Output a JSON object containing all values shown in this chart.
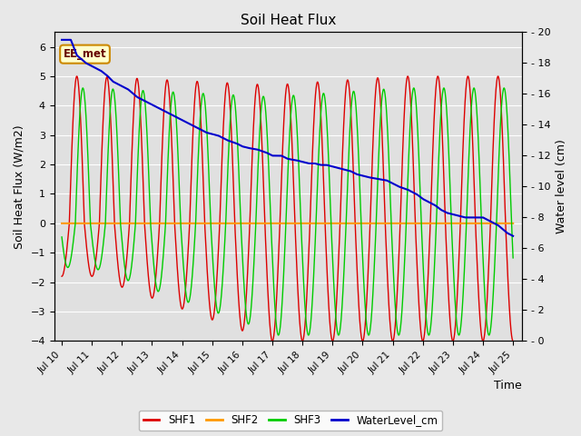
{
  "title": "Soil Heat Flux",
  "xlabel": "Time",
  "ylabel_left": "Soil Heat Flux (W/m2)",
  "ylabel_right": "Water level (cm)",
  "xlim_days": [
    9.75,
    25.3
  ],
  "ylim_left": [
    -4.0,
    6.5
  ],
  "ylim_right": [
    0,
    20
  ],
  "background_color": "#e8e8e8",
  "plot_bg_color": "#e0e0e0",
  "grid_color": "#ffffff",
  "shf1_color": "#dd0000",
  "shf2_color": "#ff9900",
  "shf3_color": "#00cc00",
  "water_color": "#0000cc",
  "annotation_text": "EE_met",
  "annotation_bg": "#ffffcc",
  "annotation_border": "#cc8800",
  "legend_labels": [
    "SHF1",
    "SHF2",
    "SHF3",
    "WaterLevel_cm"
  ],
  "x_tick_labels": [
    "Jul 10",
    "Jul 11",
    "Jul 12",
    "Jul 13",
    "Jul 14",
    "Jul 15",
    "Jul 16",
    "Jul 17",
    "Jul 18",
    "Jul 19",
    "Jul 20",
    "Jul 21",
    "Jul 22",
    "Jul 23",
    "Jul 24",
    "Jul 25"
  ],
  "x_tick_positions": [
    10,
    11,
    12,
    13,
    14,
    15,
    16,
    17,
    18,
    19,
    20,
    21,
    22,
    23,
    24,
    25
  ],
  "yticks_left": [
    -4,
    -3,
    -2,
    -1,
    0,
    1,
    2,
    3,
    4,
    5,
    6
  ],
  "yticks_right": [
    0,
    2,
    4,
    6,
    8,
    10,
    12,
    14,
    16,
    18,
    20
  ]
}
